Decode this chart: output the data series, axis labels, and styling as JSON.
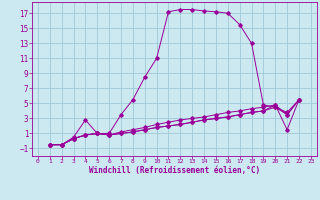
{
  "xlabel": "Windchill (Refroidissement éolien,°C)",
  "bg_color": "#cce8f0",
  "grid_color": "#a0c8d8",
  "line_color": "#990099",
  "xlim": [
    -0.5,
    23.5
  ],
  "ylim": [
    -2,
    18.5
  ],
  "xticks": [
    0,
    1,
    2,
    3,
    4,
    5,
    6,
    7,
    8,
    9,
    10,
    11,
    12,
    13,
    14,
    15,
    16,
    17,
    18,
    19,
    20,
    21,
    22,
    23
  ],
  "yticks": [
    -1,
    1,
    3,
    5,
    7,
    9,
    11,
    13,
    15,
    17
  ],
  "xtick_fontsize": 4.5,
  "ytick_fontsize": 5.5,
  "xlabel_fontsize": 5.5,
  "curves": [
    {
      "x": [
        1,
        2,
        3,
        4,
        5,
        6,
        7,
        8,
        9,
        10,
        11,
        12,
        13,
        14,
        15,
        16,
        17,
        18,
        19,
        20,
        21,
        22
      ],
      "y": [
        -0.5,
        -0.5,
        0.5,
        2.8,
        1.0,
        1.0,
        3.5,
        5.5,
        8.5,
        11.0,
        17.2,
        17.5,
        17.5,
        17.3,
        17.2,
        17.0,
        15.5,
        13.0,
        4.8,
        4.5,
        3.5,
        5.5
      ]
    },
    {
      "x": [
        1,
        2,
        3,
        4,
        5,
        6,
        7,
        8,
        9,
        10,
        11,
        12,
        13,
        14,
        15,
        16,
        17,
        18,
        19,
        20,
        21,
        22
      ],
      "y": [
        -0.5,
        -0.5,
        0.3,
        0.8,
        1.0,
        0.8,
        1.2,
        1.5,
        1.8,
        2.2,
        2.5,
        2.8,
        3.0,
        3.2,
        3.5,
        3.8,
        4.0,
        4.3,
        4.5,
        4.8,
        1.5,
        5.5
      ]
    },
    {
      "x": [
        1,
        2,
        3,
        4,
        5,
        6,
        7,
        8,
        9,
        10,
        11,
        12,
        13,
        14,
        15,
        16,
        17,
        18,
        19,
        20,
        21,
        22
      ],
      "y": [
        -0.5,
        -0.5,
        0.3,
        0.8,
        1.0,
        0.8,
        1.0,
        1.2,
        1.5,
        1.8,
        2.0,
        2.2,
        2.5,
        2.8,
        3.0,
        3.2,
        3.5,
        3.8,
        4.0,
        4.8,
        3.5,
        5.5
      ]
    },
    {
      "x": [
        1,
        2,
        3,
        4,
        5,
        6,
        7,
        8,
        9,
        10,
        11,
        12,
        13,
        14,
        15,
        16,
        17,
        18,
        19,
        20,
        21,
        22
      ],
      "y": [
        -0.5,
        -0.5,
        0.3,
        0.8,
        1.0,
        0.8,
        1.0,
        1.2,
        1.5,
        1.8,
        2.0,
        2.2,
        2.5,
        2.8,
        3.0,
        3.2,
        3.5,
        3.8,
        4.0,
        4.5,
        3.8,
        5.5
      ]
    }
  ]
}
